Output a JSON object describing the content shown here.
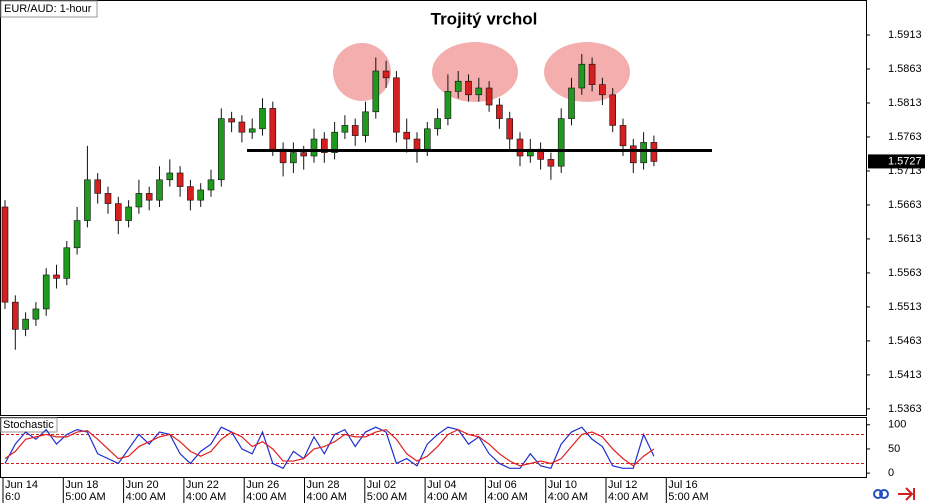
{
  "chart_data": [
    {
      "type": "candlestick",
      "title": "Trojitý vrchol",
      "label": "EUR/AUD: 1-hour",
      "up_color": "#1f9a1f",
      "down_color": "#d42020",
      "open": [
        1.566,
        1.552,
        1.548,
        1.5495,
        1.551,
        1.556,
        1.5555,
        1.56,
        1.564,
        1.57,
        1.568,
        1.5665,
        1.564,
        1.566,
        1.568,
        1.567,
        1.57,
        1.571,
        1.569,
        1.567,
        1.5685,
        1.57,
        1.579,
        1.5785,
        1.577,
        1.5775,
        1.5805,
        1.5745,
        1.5725,
        1.574,
        1.5735,
        1.576,
        1.574,
        1.577,
        1.578,
        1.5765,
        1.58,
        1.586,
        1.585,
        1.577,
        1.576,
        1.5745,
        1.5775,
        1.579,
        1.583,
        1.5845,
        1.5825,
        1.5835,
        1.581,
        1.579,
        1.576,
        1.5735,
        1.5745,
        1.573,
        1.572,
        1.579,
        1.5835,
        1.587,
        1.584,
        1.5825,
        1.578,
        1.575,
        1.5725,
        1.5755
      ],
      "high": [
        1.567,
        1.553,
        1.5505,
        1.552,
        1.557,
        1.5575,
        1.561,
        1.566,
        1.575,
        1.571,
        1.569,
        1.5675,
        1.567,
        1.57,
        1.569,
        1.572,
        1.573,
        1.572,
        1.57,
        1.5695,
        1.5715,
        1.5805,
        1.58,
        1.5795,
        1.579,
        1.582,
        1.5815,
        1.5755,
        1.5755,
        1.575,
        1.5775,
        1.577,
        1.5785,
        1.5795,
        1.579,
        1.5815,
        1.588,
        1.5875,
        1.586,
        1.579,
        1.577,
        1.5785,
        1.5805,
        1.5855,
        1.586,
        1.5855,
        1.585,
        1.5845,
        1.582,
        1.58,
        1.577,
        1.576,
        1.5755,
        1.574,
        1.5805,
        1.585,
        1.5885,
        1.588,
        1.585,
        1.5835,
        1.579,
        1.576,
        1.577,
        1.5765
      ],
      "low": [
        1.551,
        1.545,
        1.547,
        1.5485,
        1.55,
        1.554,
        1.5545,
        1.559,
        1.563,
        1.5665,
        1.565,
        1.562,
        1.563,
        1.565,
        1.5655,
        1.566,
        1.569,
        1.5675,
        1.5655,
        1.566,
        1.5675,
        1.569,
        1.577,
        1.5755,
        1.576,
        1.5765,
        1.5735,
        1.5705,
        1.571,
        1.5715,
        1.5725,
        1.5725,
        1.573,
        1.576,
        1.575,
        1.5755,
        1.579,
        1.5835,
        1.5755,
        1.574,
        1.5725,
        1.5735,
        1.5765,
        1.578,
        1.582,
        1.5815,
        1.5815,
        1.58,
        1.5775,
        1.5745,
        1.572,
        1.5725,
        1.5715,
        1.57,
        1.571,
        1.578,
        1.5825,
        1.583,
        1.581,
        1.577,
        1.5735,
        1.571,
        1.5715,
        1.572
      ],
      "close": [
        1.552,
        1.548,
        1.5495,
        1.551,
        1.556,
        1.5555,
        1.56,
        1.564,
        1.57,
        1.568,
        1.5665,
        1.564,
        1.566,
        1.568,
        1.567,
        1.57,
        1.571,
        1.569,
        1.567,
        1.5685,
        1.57,
        1.579,
        1.5785,
        1.577,
        1.5775,
        1.5805,
        1.5745,
        1.5725,
        1.574,
        1.5735,
        1.576,
        1.574,
        1.577,
        1.578,
        1.5765,
        1.58,
        1.586,
        1.585,
        1.577,
        1.576,
        1.5745,
        1.5775,
        1.579,
        1.583,
        1.5845,
        1.5825,
        1.5835,
        1.581,
        1.579,
        1.576,
        1.5735,
        1.5745,
        1.573,
        1.572,
        1.579,
        1.5835,
        1.587,
        1.584,
        1.5825,
        1.578,
        1.575,
        1.5725,
        1.5755,
        1.5727
      ],
      "support": 1.5743,
      "ylim": [
        1.5354,
        1.5963
      ],
      "yticks": [
        1.5913,
        1.5863,
        1.5813,
        1.5763,
        1.5713,
        1.5663,
        1.5613,
        1.5563,
        1.5513,
        1.5463,
        1.5413,
        1.5363
      ],
      "x_labels": [
        {
          "date": "Jun 14",
          "time": "6:0"
        },
        {
          "date": "Jun 18",
          "time": "5:00 AM"
        },
        {
          "date": "Jun 20",
          "time": "4:00 AM"
        },
        {
          "date": "Jun 22",
          "time": "4:00 AM"
        },
        {
          "date": "Jun 26",
          "time": "4:00 AM"
        },
        {
          "date": "Jun 28",
          "time": "4:00 AM"
        },
        {
          "date": "Jul 02",
          "time": "5:00 AM"
        },
        {
          "date": "Jul 04",
          "time": "4:00 AM"
        },
        {
          "date": "Jul 06",
          "time": "4:00 AM"
        },
        {
          "date": "Jul 10",
          "time": "4:00 AM"
        },
        {
          "date": "Jul 12",
          "time": "4:00 AM"
        },
        {
          "date": "Jul 16",
          "time": "5:00 AM"
        }
      ]
    },
    {
      "type": "line",
      "label": "Stochastic",
      "series": [
        {
          "color": "#2030d0",
          "values": [
            20,
            60,
            85,
            70,
            90,
            60,
            80,
            90,
            85,
            40,
            30,
            20,
            50,
            80,
            60,
            85,
            80,
            40,
            20,
            45,
            60,
            95,
            85,
            50,
            40,
            85,
            20,
            10,
            45,
            30,
            75,
            40,
            80,
            90,
            55,
            85,
            95,
            85,
            20,
            30,
            15,
            60,
            80,
            95,
            90,
            60,
            75,
            40,
            20,
            10,
            10,
            40,
            15,
            10,
            60,
            85,
            95,
            70,
            55,
            15,
            10,
            10,
            80,
            35
          ]
        },
        {
          "color": "#e02020",
          "values": [
            30,
            45,
            70,
            75,
            80,
            75,
            75,
            85,
            88,
            70,
            50,
            30,
            35,
            55,
            65,
            75,
            80,
            65,
            45,
            35,
            45,
            70,
            85,
            75,
            55,
            65,
            50,
            25,
            25,
            30,
            50,
            55,
            65,
            80,
            75,
            75,
            85,
            90,
            70,
            40,
            25,
            35,
            55,
            80,
            90,
            80,
            75,
            60,
            40,
            25,
            15,
            20,
            25,
            20,
            30,
            55,
            80,
            85,
            75,
            50,
            30,
            15,
            35,
            50
          ]
        }
      ],
      "levels": [
        80,
        20
      ],
      "ylim": [
        -8,
        114
      ],
      "yticks": [
        100,
        50,
        0
      ]
    }
  ]
}
